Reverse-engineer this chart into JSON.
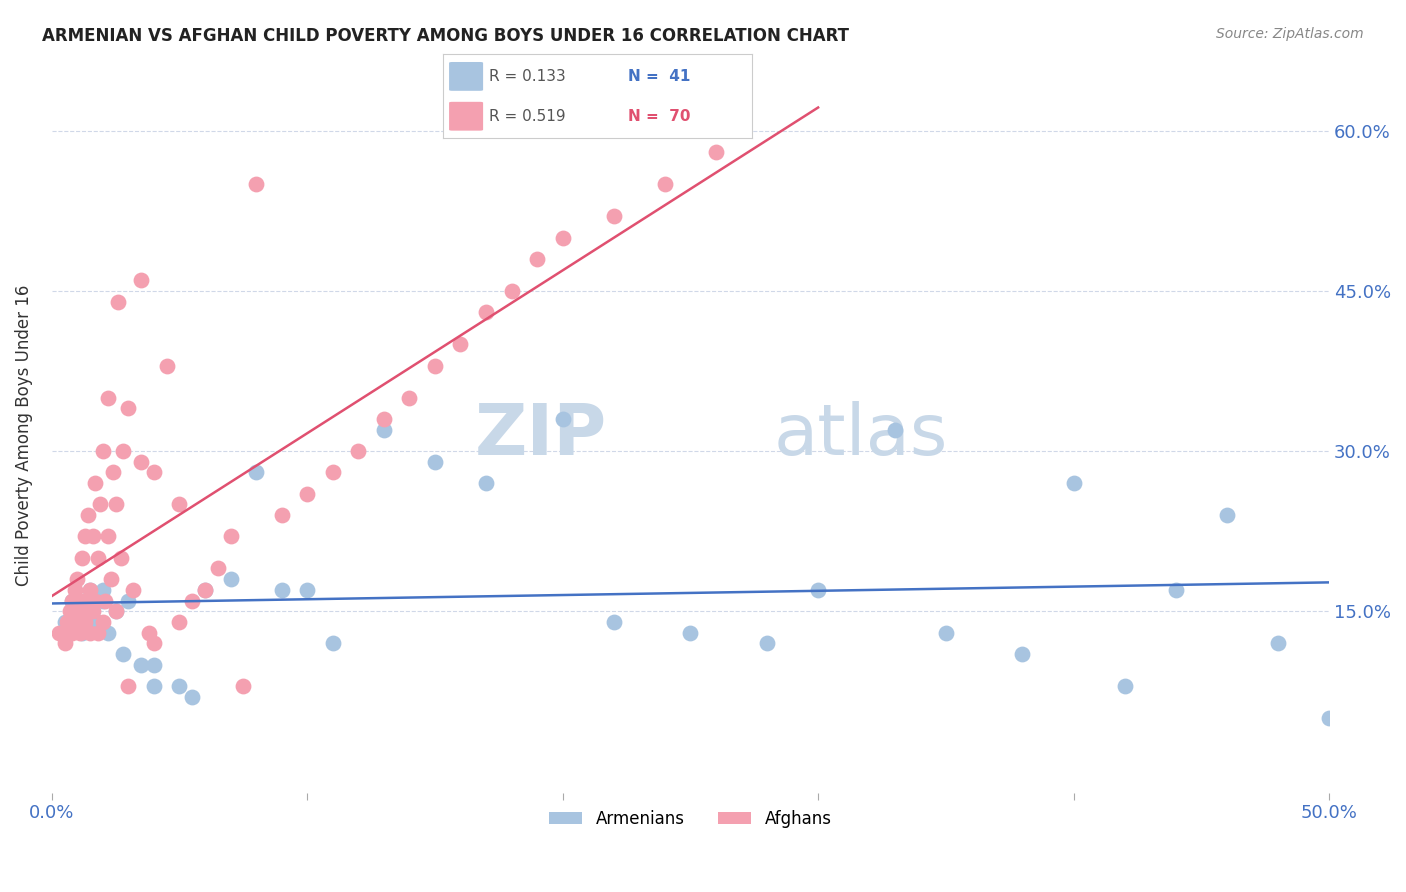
{
  "title": "ARMENIAN VS AFGHAN CHILD POVERTY AMONG BOYS UNDER 16 CORRELATION CHART",
  "source": "Source: ZipAtlas.com",
  "ylabel": "Child Poverty Among Boys Under 16",
  "xlim": [
    0.0,
    0.5
  ],
  "ylim": [
    -0.02,
    0.65
  ],
  "yticks": [
    0.15,
    0.3,
    0.45,
    0.6
  ],
  "ytick_labels": [
    "15.0%",
    "30.0%",
    "45.0%",
    "60.0%"
  ],
  "legend_r_armenian": "R = 0.133",
  "legend_n_armenian": "N =  41",
  "legend_r_afghan": "R = 0.519",
  "legend_n_afghan": "N =  70",
  "armenian_color": "#a8c4e0",
  "afghan_color": "#f4a0b0",
  "armenian_line_color": "#4472c4",
  "afghan_line_color": "#e05070",
  "watermark_zip": "ZIP",
  "watermark_atlas": "atlas",
  "watermark_color": "#c8d8e8",
  "background_color": "#ffffff",
  "armenian_x": [
    0.005,
    0.008,
    0.01,
    0.012,
    0.015,
    0.015,
    0.018,
    0.02,
    0.02,
    0.022,
    0.025,
    0.028,
    0.03,
    0.035,
    0.04,
    0.04,
    0.05,
    0.055,
    0.06,
    0.07,
    0.08,
    0.09,
    0.1,
    0.11,
    0.13,
    0.15,
    0.17,
    0.2,
    0.22,
    0.25,
    0.28,
    0.3,
    0.33,
    0.35,
    0.38,
    0.4,
    0.42,
    0.44,
    0.46,
    0.48,
    0.5
  ],
  "armenian_y": [
    0.14,
    0.16,
    0.15,
    0.13,
    0.15,
    0.17,
    0.14,
    0.16,
    0.17,
    0.13,
    0.15,
    0.11,
    0.16,
    0.1,
    0.1,
    0.08,
    0.08,
    0.07,
    0.17,
    0.18,
    0.28,
    0.17,
    0.17,
    0.12,
    0.32,
    0.29,
    0.27,
    0.33,
    0.14,
    0.13,
    0.12,
    0.17,
    0.32,
    0.13,
    0.11,
    0.27,
    0.08,
    0.17,
    0.24,
    0.12,
    0.05
  ],
  "afghan_x": [
    0.003,
    0.005,
    0.006,
    0.007,
    0.008,
    0.008,
    0.009,
    0.009,
    0.01,
    0.01,
    0.011,
    0.012,
    0.012,
    0.013,
    0.013,
    0.014,
    0.014,
    0.015,
    0.015,
    0.016,
    0.016,
    0.017,
    0.017,
    0.018,
    0.018,
    0.019,
    0.02,
    0.02,
    0.021,
    0.022,
    0.022,
    0.023,
    0.024,
    0.025,
    0.025,
    0.026,
    0.027,
    0.028,
    0.03,
    0.03,
    0.032,
    0.035,
    0.035,
    0.038,
    0.04,
    0.04,
    0.045,
    0.05,
    0.05,
    0.055,
    0.06,
    0.065,
    0.07,
    0.075,
    0.08,
    0.09,
    0.1,
    0.11,
    0.12,
    0.13,
    0.14,
    0.15,
    0.16,
    0.17,
    0.18,
    0.19,
    0.2,
    0.22,
    0.24,
    0.26
  ],
  "afghan_y": [
    0.13,
    0.12,
    0.14,
    0.15,
    0.13,
    0.16,
    0.14,
    0.17,
    0.15,
    0.18,
    0.13,
    0.16,
    0.2,
    0.14,
    0.22,
    0.15,
    0.24,
    0.13,
    0.17,
    0.15,
    0.22,
    0.16,
    0.27,
    0.13,
    0.2,
    0.25,
    0.14,
    0.3,
    0.16,
    0.22,
    0.35,
    0.18,
    0.28,
    0.15,
    0.25,
    0.44,
    0.2,
    0.3,
    0.08,
    0.34,
    0.17,
    0.29,
    0.46,
    0.13,
    0.12,
    0.28,
    0.38,
    0.14,
    0.25,
    0.16,
    0.17,
    0.19,
    0.22,
    0.08,
    0.55,
    0.24,
    0.26,
    0.28,
    0.3,
    0.33,
    0.35,
    0.38,
    0.4,
    0.43,
    0.45,
    0.48,
    0.5,
    0.52,
    0.55,
    0.58
  ]
}
